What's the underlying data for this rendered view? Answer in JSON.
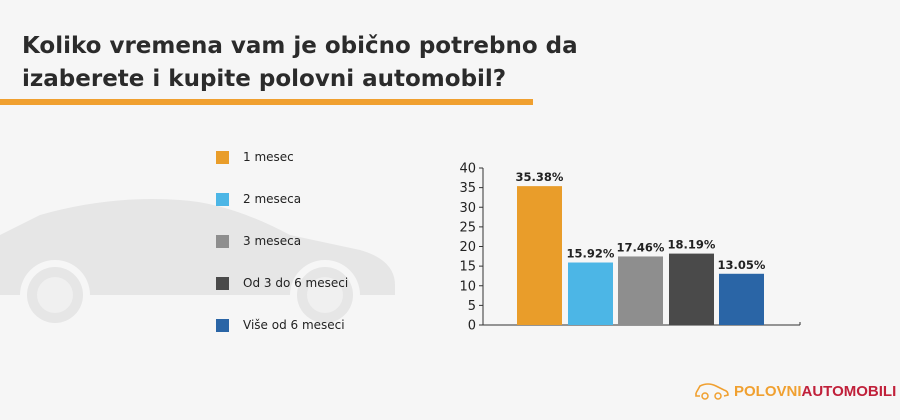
{
  "title": "Koliko vremena vam je obično potrebno da izaberete i kupite polovni automobil?",
  "logo": {
    "part1": "POLOVNI",
    "part2": "AUTOMOBILI"
  },
  "chart_data": {
    "type": "bar",
    "title": "Koliko vremena vam je obično potrebno da izaberete i kupite polovni automobil?",
    "categories": [
      "1 mesec",
      "2 meseca",
      "3 meseca",
      "Od 3 do 6 meseci",
      "Više od 6 meseci"
    ],
    "values": [
      35.38,
      15.92,
      17.46,
      18.19,
      13.05
    ],
    "data_labels": [
      "35.38%",
      "15.92%",
      "17.46%",
      "18.19%",
      "13.05%"
    ],
    "colors": [
      "#e99d2a",
      "#4cb6e6",
      "#8e8e8e",
      "#4a4a4a",
      "#2a65a6"
    ],
    "ylim": [
      0,
      40
    ],
    "yticks": [
      "0",
      "5",
      "10",
      "15",
      "20",
      "25",
      "30",
      "35",
      "40"
    ],
    "xlabel": "",
    "ylabel": "",
    "grid": false,
    "legend": "left"
  }
}
